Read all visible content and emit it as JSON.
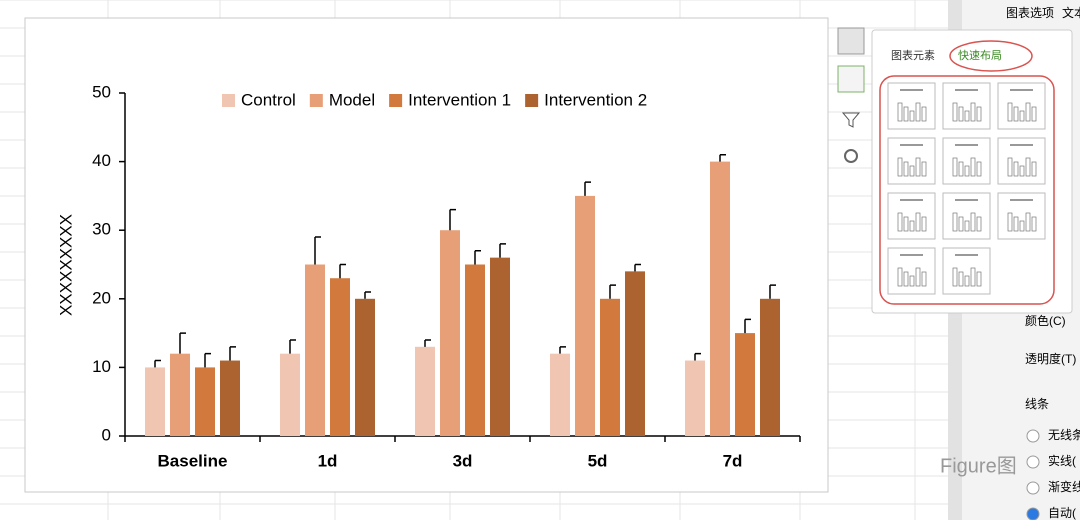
{
  "chart_data": {
    "type": "bar",
    "y_label": "XXXXXXXXX",
    "categories": [
      "Baseline",
      "1d",
      "3d",
      "5d",
      "7d"
    ],
    "series": [
      {
        "name": "Control",
        "color": "#f0c6b2",
        "values": [
          10,
          12,
          13,
          12,
          11
        ],
        "errors": [
          1,
          2,
          1,
          1,
          1
        ]
      },
      {
        "name": "Model",
        "color": "#e79f78",
        "values": [
          12,
          25,
          30,
          35,
          40
        ],
        "errors": [
          3,
          4,
          3,
          2,
          1
        ]
      },
      {
        "name": "Intervention 1",
        "color": "#d27a3e",
        "values": [
          10,
          23,
          25,
          20,
          15
        ],
        "errors": [
          2,
          2,
          2,
          2,
          2
        ]
      },
      {
        "name": "Intervention 2",
        "color": "#ad6330",
        "values": [
          11,
          20,
          26,
          24,
          20
        ],
        "errors": [
          2,
          1,
          2,
          1,
          2
        ]
      }
    ],
    "ylim": [
      0,
      50
    ],
    "yticks": [
      0,
      10,
      20,
      30,
      40,
      50
    ],
    "legend": "top"
  },
  "popup": {
    "tabs": [
      "图表元素",
      "快速布局"
    ]
  },
  "sidebar": {
    "header": [
      "图表选项",
      "文本"
    ],
    "items": [
      "颜色(C)",
      "透明度(T)"
    ],
    "section": "线条",
    "options": [
      "无线条",
      "实线(",
      "渐变线",
      "自动("
    ]
  },
  "watermark": "Figure图"
}
